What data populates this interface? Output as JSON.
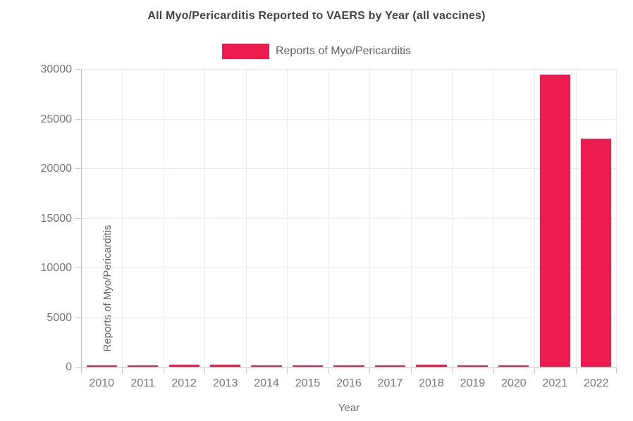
{
  "title": "All Myo/Pericarditis Reported to VAERS by Year (all vaccines)",
  "legend": {
    "label": "Reports of Myo/Pericarditis",
    "swatch_color": "#ED1C4E"
  },
  "colors": {
    "bar": "#ED1C4E",
    "title_text": "#434343",
    "tick_text": "#76777a",
    "axis_line": "#bfbfc2",
    "gridline": "#ebebee"
  },
  "chart_data": {
    "type": "bar",
    "title": "All Myo/Pericarditis Reported to VAERS by Year (all vaccines)",
    "categories": [
      "2010",
      "2011",
      "2012",
      "2013",
      "2014",
      "2015",
      "2016",
      "2017",
      "2018",
      "2019",
      "2020",
      "2021",
      "2022"
    ],
    "series": [
      {
        "name": "Reports of Myo/Pericarditis",
        "color": "#ED1C4E",
        "values": [
          130,
          130,
          200,
          210,
          140,
          130,
          120,
          120,
          200,
          140,
          150,
          29400,
          23000
        ]
      }
    ],
    "xlabel": "Year",
    "ylabel": "Reports of Myo/Pericarditis",
    "ylim": [
      0,
      30000
    ],
    "yticks": [
      0,
      5000,
      10000,
      15000,
      20000,
      25000,
      30000
    ],
    "grid": true,
    "legend_position": "top"
  }
}
